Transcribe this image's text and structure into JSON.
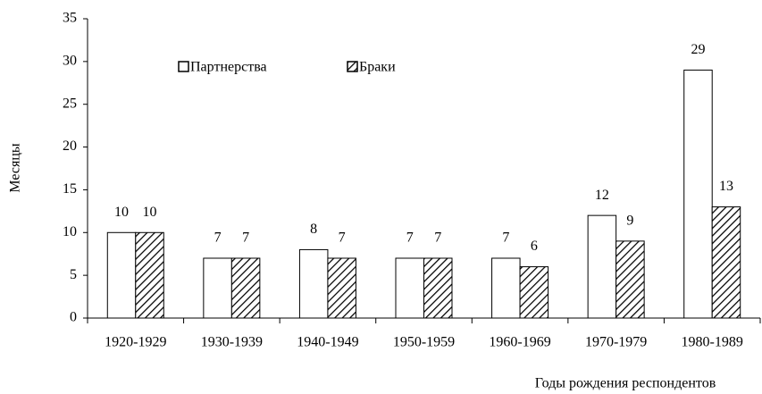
{
  "chart_data": {
    "type": "bar",
    "y_label": "Месяцы",
    "x_label": "Годы рождения респондентов",
    "categories": [
      "1920-1929",
      "1930-1939",
      "1940-1949",
      "1950-1959",
      "1960-1969",
      "1970-1979",
      "1980-1989"
    ],
    "series": [
      {
        "name": "Партнерства",
        "color": "#ffffff",
        "pattern": "solid",
        "values": [
          10,
          7,
          8,
          7,
          7,
          12,
          29
        ]
      },
      {
        "name": "Браки",
        "color": "#ffffff",
        "pattern": "hatch",
        "values": [
          10,
          7,
          7,
          7,
          6,
          9,
          13
        ]
      }
    ],
    "ylim": [
      0,
      35
    ],
    "yticks": [
      0,
      5,
      10,
      15,
      20,
      25,
      30,
      35
    ]
  }
}
